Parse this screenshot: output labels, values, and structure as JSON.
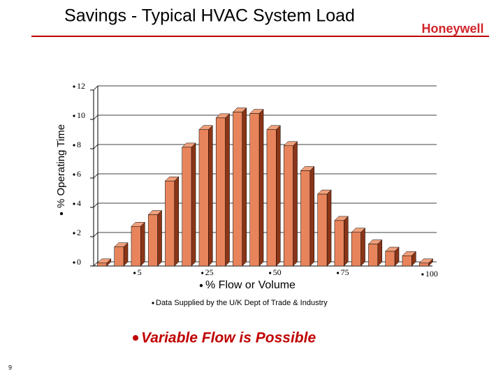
{
  "title": "Savings - Typical HVAC System Load",
  "logo": "Honeywell",
  "chart_data": {
    "type": "bar",
    "y_label": "% Operating Time",
    "x_label": "% Flow or Volume",
    "categories": [
      null,
      null,
      "5",
      null,
      null,
      null,
      "25",
      null,
      null,
      null,
      "50",
      null,
      null,
      null,
      "75",
      null,
      null,
      null,
      null,
      "100"
    ],
    "values": [
      0.2,
      1.3,
      2.7,
      3.5,
      5.8,
      8.1,
      9.3,
      10.1,
      10.5,
      10.4,
      9.3,
      8.2,
      6.5,
      4.9,
      3.1,
      2.3,
      1.5,
      1.0,
      0.7,
      0.2
    ],
    "color": "#e8845c",
    "ylim": [
      0,
      12
    ],
    "yticks": [
      0,
      2,
      4,
      6,
      8,
      10,
      12
    ],
    "grid": true
  },
  "note": "Data Supplied by the U/K Dept of Trade & Industry",
  "headline": "Variable Flow is Possible",
  "page_number": "9"
}
